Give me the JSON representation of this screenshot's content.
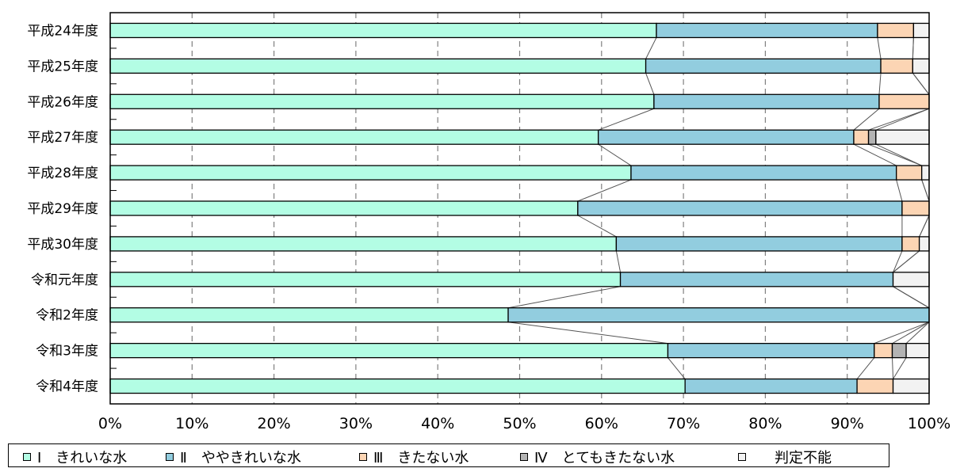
{
  "chart_data": {
    "type": "bar",
    "orientation": "horizontal-stacked-100",
    "categories": [
      "平成24年度",
      "平成25年度",
      "平成26年度",
      "平成27年度",
      "平成28年度",
      "平成29年度",
      "平成30年度",
      "令和元年度",
      "令和2年度",
      "令和3年度",
      "令和4年度"
    ],
    "series": [
      {
        "name": "Ⅰ　きれいな水",
        "color": "#b3fde4",
        "values": [
          66.7,
          65.4,
          66.4,
          59.6,
          63.6,
          57.1,
          61.8,
          62.3,
          48.6,
          68.1,
          70.2
        ]
      },
      {
        "name": "Ⅱ　ややきれいな水",
        "color": "#92cddf",
        "values": [
          27.0,
          28.7,
          27.5,
          31.2,
          32.4,
          39.6,
          34.9,
          33.3,
          51.4,
          25.2,
          21.0
        ]
      },
      {
        "name": "Ⅲ　きたない水",
        "color": "#fcd5b4",
        "values": [
          4.4,
          3.9,
          6.1,
          1.8,
          3.1,
          3.3,
          2.1,
          0.0,
          0.0,
          2.2,
          4.4
        ]
      },
      {
        "name": "Ⅳ　とてもきたない水",
        "color": "#b3b3b3",
        "values": [
          0.0,
          0.0,
          0.0,
          0.9,
          0.0,
          0.0,
          0.0,
          0.0,
          0.0,
          1.7,
          0.0
        ]
      },
      {
        "name": "判定不能",
        "color": "#f2f2f2",
        "values": [
          1.9,
          2.0,
          0.0,
          6.5,
          0.9,
          0.0,
          1.2,
          4.4,
          0.0,
          2.8,
          4.4
        ]
      }
    ],
    "x_ticks": [
      "0%",
      "10%",
      "20%",
      "30%",
      "40%",
      "50%",
      "60%",
      "70%",
      "80%",
      "90%",
      "100%"
    ],
    "xlim": [
      0,
      100
    ],
    "grid": "vertical-dashed",
    "series_connector_lines": true,
    "legend_position": "bottom"
  }
}
